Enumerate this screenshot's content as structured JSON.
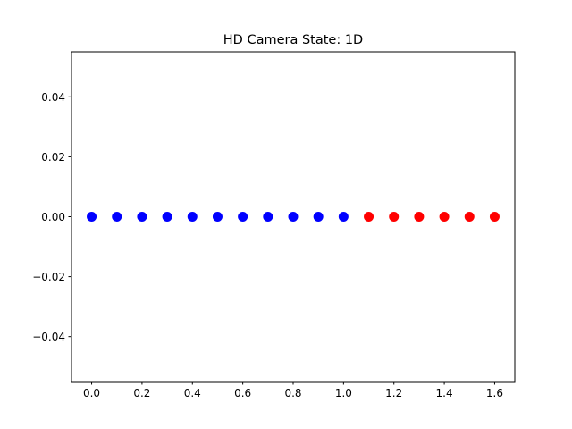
{
  "chart_data": {
    "type": "scatter",
    "title": "HD Camera State: 1D",
    "xlabel": "",
    "ylabel": "",
    "xlim": [
      -0.08,
      1.68
    ],
    "ylim": [
      -0.055,
      0.055
    ],
    "x_ticks": [
      0.0,
      0.2,
      0.4,
      0.6,
      0.8,
      1.0,
      1.2,
      1.4,
      1.6
    ],
    "x_tick_labels": [
      "0.0",
      "0.2",
      "0.4",
      "0.6",
      "0.8",
      "1.0",
      "1.2",
      "1.4",
      "1.6"
    ],
    "y_ticks": [
      -0.04,
      -0.02,
      0.0,
      0.02,
      0.04
    ],
    "y_tick_labels": [
      "−0.04",
      "−0.02",
      "0.00",
      "0.02",
      "0.04"
    ],
    "grid": false,
    "series": [
      {
        "color": "#0000ff",
        "x": [
          0.0,
          0.1,
          0.2,
          0.3,
          0.4,
          0.5,
          0.6,
          0.7,
          0.8,
          0.9,
          1.0
        ],
        "y": [
          0,
          0,
          0,
          0,
          0,
          0,
          0,
          0,
          0,
          0,
          0
        ]
      },
      {
        "color": "#ff0000",
        "x": [
          1.1,
          1.2,
          1.3,
          1.4,
          1.5,
          1.6
        ],
        "y": [
          0,
          0,
          0,
          0,
          0,
          0
        ]
      }
    ]
  }
}
